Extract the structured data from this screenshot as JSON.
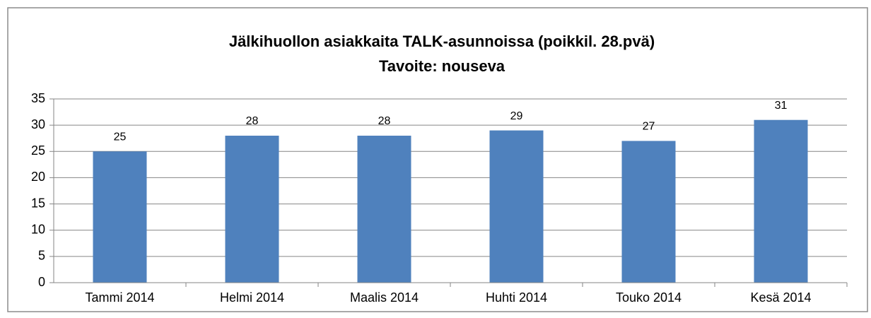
{
  "chart_data": {
    "type": "bar",
    "title": "Jälkihuollon asiakkaita TALK-asunnoissa (poikkil. 28.pvä)",
    "subtitle": "Tavoite: nouseva",
    "categories": [
      "Tammi 2014",
      "Helmi 2014",
      "Maalis 2014",
      "Huhti 2014",
      "Touko 2014",
      "Kesä 2014"
    ],
    "values": [
      25,
      28,
      28,
      29,
      27,
      31
    ],
    "color": "#4f81bd",
    "ylim": [
      0,
      35
    ],
    "yticks": [
      0,
      5,
      10,
      15,
      20,
      25,
      30,
      35
    ],
    "grid": true
  }
}
